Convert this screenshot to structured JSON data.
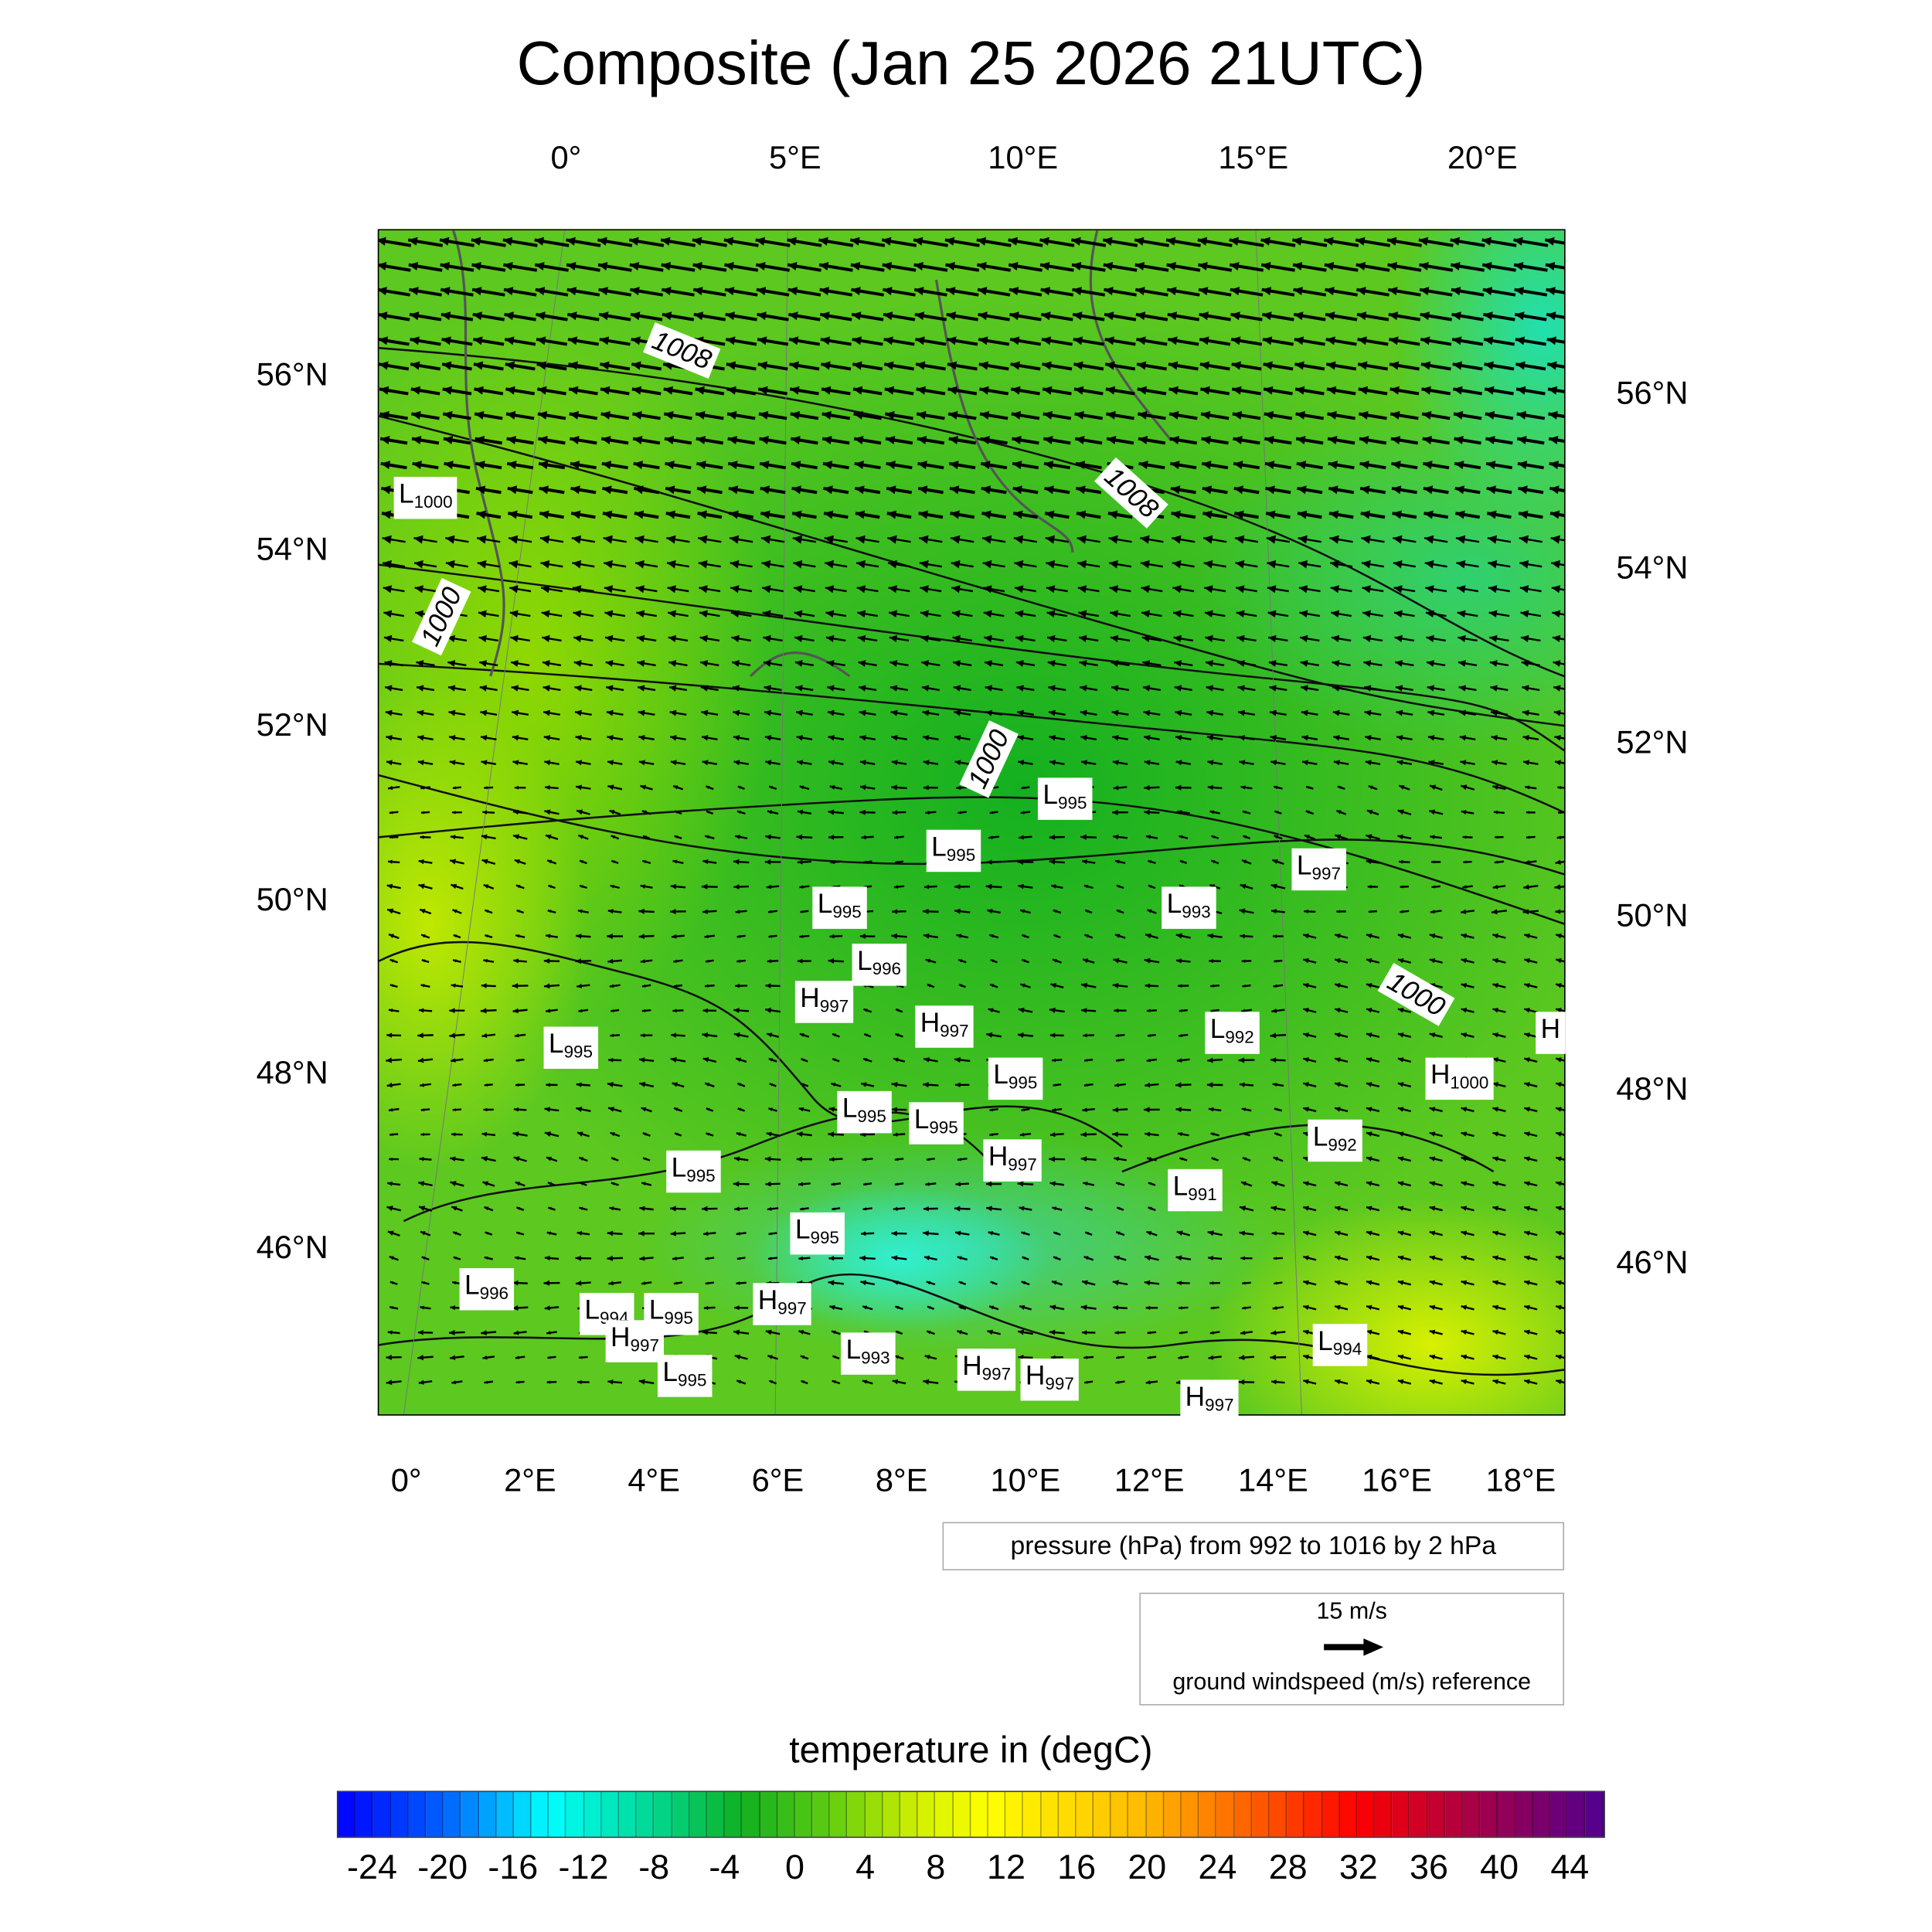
{
  "chart_data": {
    "type": "heatmap",
    "title": "Composite (Jan 25 2026 21UTC)",
    "fields": [
      "temperature (filled)",
      "pressure contours",
      "ground wind vectors"
    ],
    "x_axis_top": {
      "ticks": [
        "0°",
        "5°E",
        "10°E",
        "15°E",
        "20°E"
      ]
    },
    "x_axis_bottom": {
      "ticks": [
        "0°",
        "2°E",
        "4°E",
        "6°E",
        "8°E",
        "10°E",
        "12°E",
        "14°E",
        "16°E",
        "18°E"
      ]
    },
    "y_axis_left": {
      "ticks": [
        "56°N",
        "54°N",
        "52°N",
        "50°N",
        "48°N",
        "46°N"
      ]
    },
    "y_axis_right": {
      "ticks": [
        "56°N",
        "54°N",
        "52°N",
        "50°N",
        "48°N",
        "46°N"
      ]
    },
    "contour_info": "pressure (hPa) from 992 to 1016 by 2 hPa",
    "contour_labels": [
      "1008",
      "1008",
      "1000",
      "1000",
      "1000"
    ],
    "pressure_centers": [
      {
        "t": "L",
        "v": "1000"
      },
      {
        "t": "L",
        "v": "995"
      },
      {
        "t": "L",
        "v": "995"
      },
      {
        "t": "L",
        "v": "997"
      },
      {
        "t": "L",
        "v": "995"
      },
      {
        "t": "L",
        "v": "993"
      },
      {
        "t": "L",
        "v": "996"
      },
      {
        "t": "H",
        "v": "997"
      },
      {
        "t": "H",
        "v": "997"
      },
      {
        "t": "L",
        "v": "992"
      },
      {
        "t": "L",
        "v": "995"
      },
      {
        "t": "H",
        "v": "1000"
      },
      {
        "t": "H",
        "v": ""
      },
      {
        "t": "L",
        "v": "995"
      },
      {
        "t": "L",
        "v": "995"
      },
      {
        "t": "L",
        "v": "995"
      },
      {
        "t": "L",
        "v": "992"
      },
      {
        "t": "H",
        "v": "997"
      },
      {
        "t": "L",
        "v": "995"
      },
      {
        "t": "L",
        "v": "991"
      },
      {
        "t": "L",
        "v": "995"
      },
      {
        "t": "L",
        "v": "996"
      },
      {
        "t": "L",
        "v": "994"
      },
      {
        "t": "L",
        "v": "995"
      },
      {
        "t": "H",
        "v": "997"
      },
      {
        "t": "H",
        "v": "997"
      },
      {
        "t": "L",
        "v": "993"
      },
      {
        "t": "L",
        "v": "995"
      },
      {
        "t": "H",
        "v": "997"
      },
      {
        "t": "H",
        "v": "997"
      },
      {
        "t": "L",
        "v": "994"
      },
      {
        "t": "H",
        "v": "997"
      }
    ],
    "vector_reference": {
      "value": "15 m/s",
      "label": "ground windspeed (m/s) reference"
    },
    "colorbar": {
      "title": "temperature in (degC)",
      "range": [
        -26,
        46
      ],
      "step": 1,
      "tick_labels": [
        "-24",
        "-20",
        "-16",
        "-12",
        "-8",
        "-4",
        "0",
        "4",
        "8",
        "12",
        "16",
        "20",
        "24",
        "28",
        "32",
        "36",
        "40",
        "44"
      ],
      "color_stops": [
        {
          "v": -26,
          "c": "#0000ff"
        },
        {
          "v": -20,
          "c": "#0060ff"
        },
        {
          "v": -14,
          "c": "#00ffff"
        },
        {
          "v": -8,
          "c": "#00d890"
        },
        {
          "v": -3,
          "c": "#10b020"
        },
        {
          "v": 2,
          "c": "#60cc10"
        },
        {
          "v": 7,
          "c": "#d0f000"
        },
        {
          "v": 11,
          "c": "#ffff00"
        },
        {
          "v": 20,
          "c": "#ffb800"
        },
        {
          "v": 28,
          "c": "#ff4000"
        },
        {
          "v": 32,
          "c": "#ff0000"
        },
        {
          "v": 38,
          "c": "#b00040"
        },
        {
          "v": 46,
          "c": "#500090"
        }
      ]
    }
  }
}
